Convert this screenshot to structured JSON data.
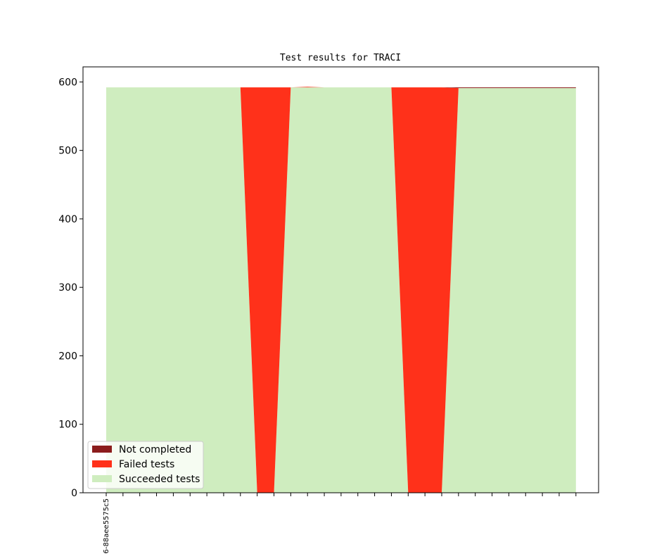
{
  "chart_data": {
    "type": "area",
    "title": "Test results for TRACI",
    "xlabel": "",
    "ylabel": "",
    "ylim": [
      0,
      622
    ],
    "y_ticks": [
      0,
      100,
      200,
      300,
      400,
      500,
      600
    ],
    "x_tick_labels": [
      "6-88aee5575c5"
    ],
    "x_count": 29,
    "stack_order": [
      "Succeeded tests",
      "Failed tests",
      "Not completed"
    ],
    "series": [
      {
        "name": "Succeeded tests",
        "color": "#cfedbf",
        "values": [
          592,
          592,
          592,
          592,
          592,
          592,
          592,
          592,
          592,
          0,
          0,
          592,
          592,
          592,
          592,
          592,
          592,
          592,
          0,
          0,
          0,
          591,
          591,
          591,
          591,
          591,
          591,
          591,
          591
        ]
      },
      {
        "name": "Failed tests",
        "color": "#ff311a",
        "values": [
          0,
          0,
          0,
          0,
          0,
          0,
          0,
          0,
          0,
          592,
          592,
          0,
          1,
          0,
          0,
          0,
          0,
          0,
          592,
          592,
          592,
          0,
          0,
          0,
          0,
          0,
          0,
          0,
          0
        ]
      },
      {
        "name": "Not completed",
        "color": "#8b1c1c",
        "values": [
          0,
          0,
          0,
          0,
          0,
          0,
          0,
          0,
          0,
          0,
          0,
          0,
          0,
          0,
          0,
          0,
          0,
          0,
          0,
          0,
          0,
          1,
          1,
          1,
          1,
          1,
          1,
          1,
          1
        ]
      }
    ],
    "legend": {
      "placement": "lower-left",
      "entries": [
        "Not completed",
        "Failed tests",
        "Succeeded tests"
      ]
    },
    "grid": false
  }
}
